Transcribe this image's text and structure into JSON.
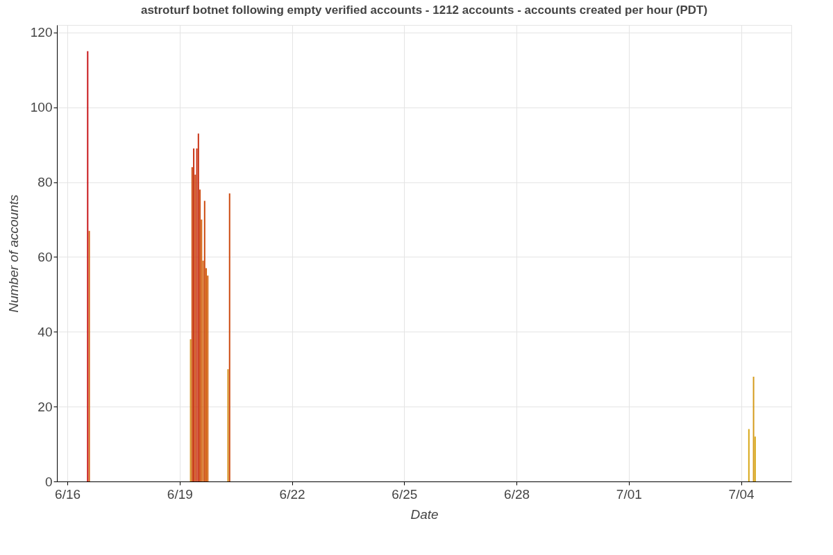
{
  "chart_data": {
    "type": "bar",
    "title": "astroturf botnet following empty verified accounts - 1212 accounts - accounts created per hour (PDT)",
    "xlabel": "Date",
    "ylabel": "Number of accounts",
    "x": [
      "--06-16T13:00",
      "--06-16T14:00",
      "--06-19T07:00",
      "--06-19T08:00",
      "--06-19T09:00",
      "--06-19T10:00",
      "--06-19T11:00",
      "--06-19T12:00",
      "--06-19T13:00",
      "--06-19T14:00",
      "--06-19T15:00",
      "--06-19T16:00",
      "--06-19T17:00",
      "--06-19T18:00",
      "--06-20T07:00",
      "--06-20T08:00",
      "--07-04T05:00",
      "--07-04T08:00",
      "--07-04T09:00"
    ],
    "values": [
      115,
      67,
      38,
      84,
      89,
      82,
      89,
      93,
      78,
      70,
      59,
      75,
      57,
      55,
      30,
      77,
      14,
      28,
      12
    ],
    "colors": [
      "#c8161a",
      "#d2600f",
      "#d4901a",
      "#cc4a10",
      "#c83214",
      "#cc4a10",
      "#c83214",
      "#c83214",
      "#cc4a10",
      "#d2600f",
      "#d2600f",
      "#cc4a10",
      "#d2600f",
      "#d2600f",
      "#d4901a",
      "#cc4a10",
      "#d8a818",
      "#d49a1a",
      "#d8a818"
    ],
    "xlim": [
      "--06-15T19:30",
      "--07-05T06:00"
    ],
    "xticks": [
      {
        "value": "--06-16",
        "label": "6/16"
      },
      {
        "value": "--06-19",
        "label": "6/19"
      },
      {
        "value": "--06-22",
        "label": "6/22"
      },
      {
        "value": "--06-25",
        "label": "6/25"
      },
      {
        "value": "--06-28",
        "label": "6/28"
      },
      {
        "value": "--07-01",
        "label": "7/01"
      },
      {
        "value": "--07-04",
        "label": "7/04"
      }
    ],
    "ylim": [
      0,
      122
    ],
    "yticks": [
      0,
      20,
      40,
      60,
      80,
      100,
      120
    ],
    "grid": true
  }
}
